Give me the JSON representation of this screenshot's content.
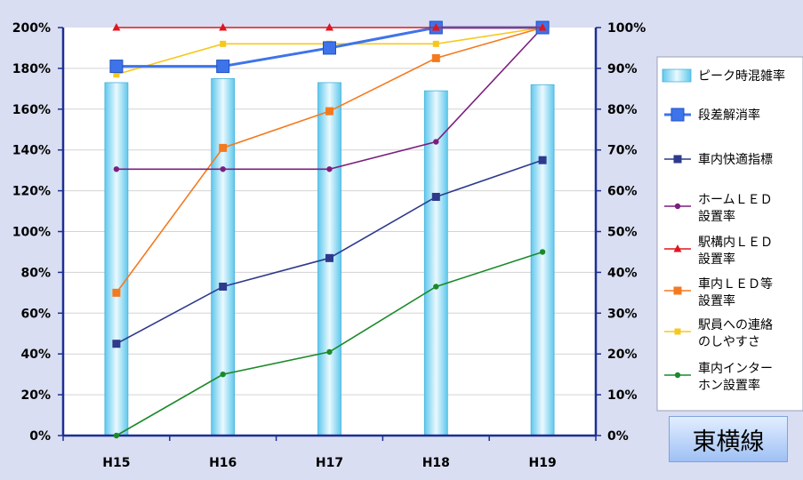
{
  "chart_data": {
    "type": "bar+line",
    "categories": [
      "H15",
      "H16",
      "H17",
      "H18",
      "H19"
    ],
    "left_axis": {
      "ticks": [
        "0%",
        "20%",
        "40%",
        "60%",
        "80%",
        "100%",
        "120%",
        "140%",
        "160%",
        "180%",
        "200%"
      ],
      "ylim": [
        0,
        200
      ]
    },
    "right_axis": {
      "ticks": [
        "0%",
        "10%",
        "20%",
        "30%",
        "40%",
        "50%",
        "60%",
        "70%",
        "80%",
        "90%",
        "100%"
      ],
      "ylim": [
        0,
        100
      ]
    },
    "grid": "horizontal",
    "legend_position": "right",
    "series": [
      {
        "name": "ピーク時混雑率",
        "type": "bar",
        "axis": "left",
        "values": [
          173,
          175,
          173,
          169,
          172
        ],
        "color": "#6fd0ee"
      },
      {
        "name": "段差解消率",
        "type": "line",
        "axis": "right",
        "marker": "square-large",
        "values": [
          90.5,
          90.5,
          95,
          100,
          100
        ],
        "color": "#3e74ea"
      },
      {
        "name": "車内快適指標",
        "type": "line",
        "axis": "right",
        "marker": "square",
        "values": [
          22.5,
          36.5,
          43.5,
          58.5,
          67.5
        ],
        "color": "#2e3a8c"
      },
      {
        "name": "ホームＬＥＤ\n設置率",
        "type": "line",
        "axis": "right",
        "marker": "circle",
        "values": [
          65.3,
          65.3,
          65.3,
          72,
          100
        ],
        "color": "#7b1f7e"
      },
      {
        "name": "駅構内ＬＥＤ\n設置率",
        "type": "line",
        "axis": "right",
        "marker": "triangle",
        "values": [
          100,
          100,
          100,
          100,
          100
        ],
        "color": "#e0161e"
      },
      {
        "name": "車内ＬＥＤ等\n設置率",
        "type": "line",
        "axis": "right",
        "marker": "square",
        "values": [
          35,
          70.5,
          79.5,
          92.5,
          100
        ],
        "color": "#f47a1f"
      },
      {
        "name": "駅員への連絡\nのしやすさ",
        "type": "line",
        "axis": "right",
        "marker": "square-small",
        "values": [
          88.5,
          96,
          96,
          96,
          100
        ],
        "color": "#f7c81c"
      },
      {
        "name": "車内インター\nホン設置率",
        "type": "line",
        "axis": "right",
        "marker": "circle",
        "values": [
          0,
          15,
          20.5,
          36.5,
          45
        ],
        "color": "#1a8a2a"
      }
    ]
  },
  "line_label": "東横線"
}
